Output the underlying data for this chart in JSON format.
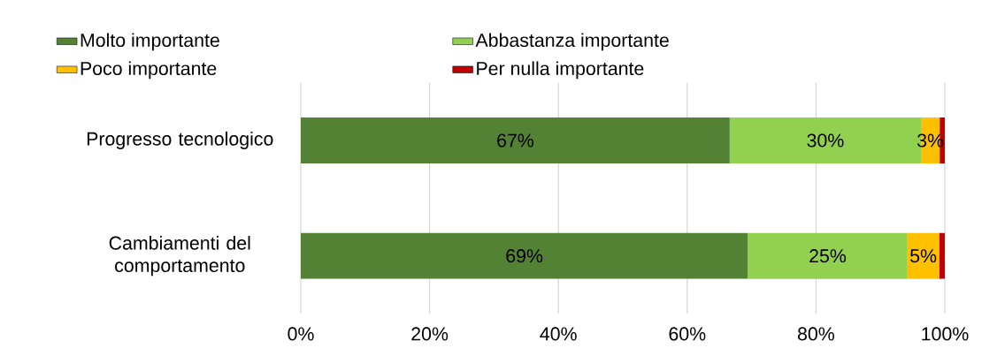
{
  "chart_data": {
    "type": "bar",
    "orientation": "horizontal",
    "stacked": true,
    "categories": [
      "Progresso tecnologico",
      "Cambiamenti del comportamento"
    ],
    "series": [
      {
        "name": "Molto importante",
        "color": "#548235",
        "values": [
          66.6,
          69.4
        ],
        "value_labels": [
          "67%",
          "69%"
        ]
      },
      {
        "name": "Abbastanza importante",
        "color": "#92d050",
        "values": [
          29.7,
          24.8
        ],
        "value_labels": [
          "30%",
          "25%"
        ]
      },
      {
        "name": "Poco importante",
        "color": "#ffc000",
        "values": [
          2.9,
          4.9
        ],
        "value_labels": [
          "3%",
          "5%"
        ]
      },
      {
        "name": "Per nulla importante",
        "color": "#c00000",
        "values": [
          0.8,
          0.9
        ],
        "value_labels": [
          null,
          null
        ]
      }
    ],
    "xlim": [
      0,
      100
    ],
    "xticks": [
      {
        "value": 0,
        "label": "0%"
      },
      {
        "value": 20,
        "label": "20%"
      },
      {
        "value": 40,
        "label": "40%"
      },
      {
        "value": 60,
        "label": "60%"
      },
      {
        "value": 80,
        "label": "80%"
      },
      {
        "value": 100,
        "label": "100%"
      }
    ],
    "grid": "x",
    "legend": "top"
  }
}
